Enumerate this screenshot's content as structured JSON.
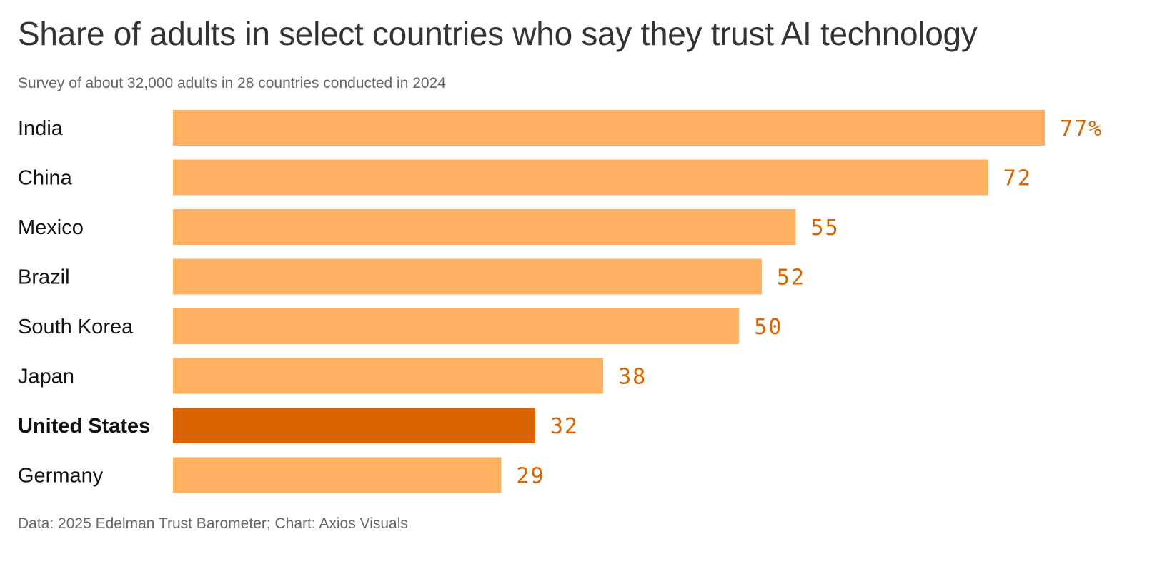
{
  "chart_data": {
    "type": "bar",
    "orientation": "horizontal",
    "title": "Share of adults in select countries who say they trust AI technology",
    "subtitle": "Survey of about 32,000 adults in 28 countries conducted in 2024",
    "source": "Data: 2025 Edelman Trust Barometer; Chart: Axios Visuals",
    "categories": [
      "India",
      "China",
      "Mexico",
      "Brazil",
      "South Korea",
      "Japan",
      "United States",
      "Germany"
    ],
    "values": [
      77,
      72,
      55,
      52,
      50,
      38,
      32,
      29
    ],
    "value_labels": [
      "77%",
      "72",
      "55",
      "52",
      "50",
      "38",
      "32",
      "29"
    ],
    "highlight": "United States",
    "xlim": [
      0,
      77
    ],
    "grid": false,
    "colors": {
      "bar": "#ffb061",
      "highlight": "#d96400",
      "value_label": "#d96400"
    }
  }
}
